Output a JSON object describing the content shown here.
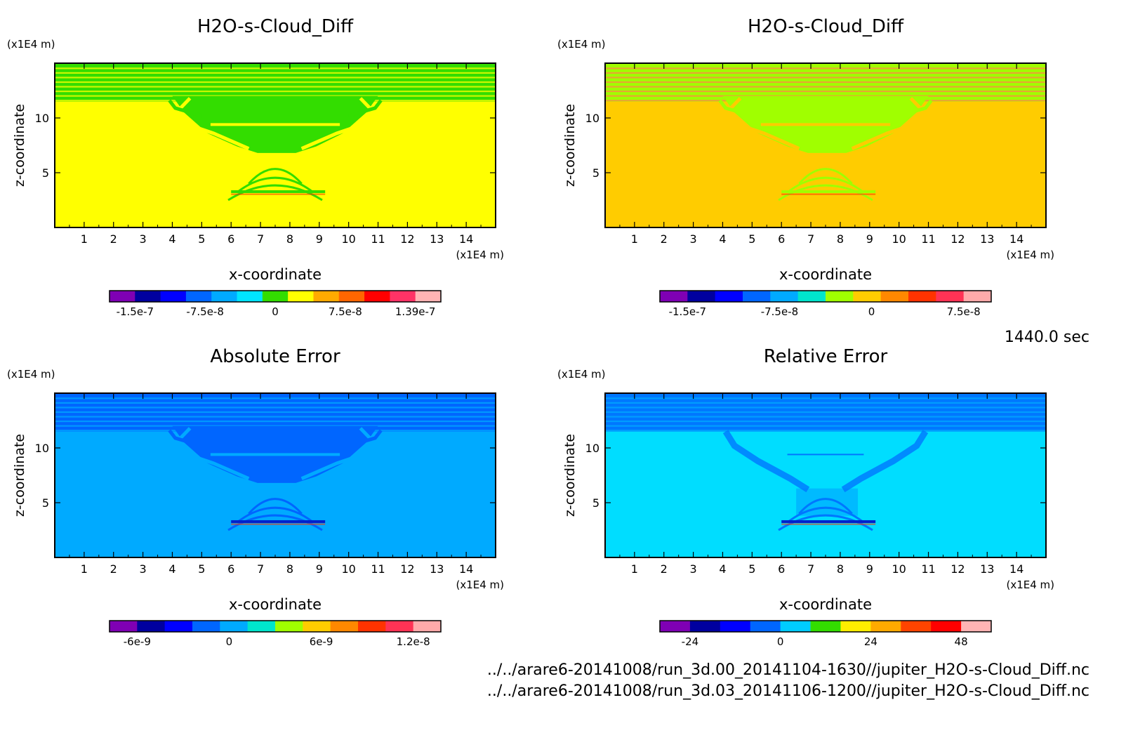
{
  "time_label": "1440.0 sec",
  "files": [
    "../../arare6-20141008/run_3d.00_20141104-1630//jupiter_H2O-s-Cloud_Diff.nc",
    "../../arare6-20141008/run_3d.03_20141106-1200//jupiter_H2O-s-Cloud_Diff.nc"
  ],
  "chart_data": [
    {
      "type": "heatmap",
      "title": "H2O-s-Cloud_Diff",
      "xlabel": "x-coordinate",
      "ylabel": "z-coordinate",
      "x_unit": "(x1E4 m)",
      "z_unit": "(x1E4 m)",
      "xlim": [
        0,
        15
      ],
      "zlim": [
        0,
        15
      ],
      "x_ticks": [
        "1",
        "2",
        "3",
        "4",
        "5",
        "6",
        "7",
        "8",
        "9",
        "10",
        "11",
        "12",
        "13",
        "14"
      ],
      "z_ticks": [
        "5",
        "10"
      ],
      "background_color": "#ffff00",
      "feature_color": "#33dd00",
      "colorbar_colors": [
        "#7f00b4",
        "#00009f",
        "#0000ff",
        "#0066ff",
        "#00aaff",
        "#00e5ff",
        "#33dd00",
        "#ffff00",
        "#ffaa00",
        "#ff6600",
        "#ff0000",
        "#ff3366",
        "#ffb4b4"
      ],
      "colorbar_labels": [
        "-1.5e-7",
        "-7.5e-8",
        "0",
        "7.5e-8",
        "1.39e-7"
      ]
    },
    {
      "type": "heatmap",
      "title": "H2O-s-Cloud_Diff",
      "xlabel": "x-coordinate",
      "ylabel": "z-coordinate",
      "x_unit": "(x1E4 m)",
      "z_unit": "(x1E4 m)",
      "xlim": [
        0,
        15
      ],
      "zlim": [
        0,
        15
      ],
      "x_ticks": [
        "1",
        "2",
        "3",
        "4",
        "5",
        "6",
        "7",
        "8",
        "9",
        "10",
        "11",
        "12",
        "13",
        "14"
      ],
      "z_ticks": [
        "5",
        "10"
      ],
      "background_color": "#ffcc00",
      "feature_color": "#a0ff00",
      "colorbar_colors": [
        "#7f00b4",
        "#00009f",
        "#0000ff",
        "#0066ff",
        "#00aaff",
        "#00e5cc",
        "#a0ff00",
        "#ffcc00",
        "#ff8800",
        "#ff3300",
        "#ff3355",
        "#ffaaaa"
      ],
      "colorbar_labels": [
        "-1.5e-7",
        "-7.5e-8",
        "0",
        "7.5e-8"
      ]
    },
    {
      "type": "heatmap",
      "title": "Absolute Error",
      "xlabel": "x-coordinate",
      "ylabel": "z-coordinate",
      "x_unit": "(x1E4 m)",
      "z_unit": "(x1E4 m)",
      "xlim": [
        0,
        15
      ],
      "zlim": [
        0,
        15
      ],
      "x_ticks": [
        "1",
        "2",
        "3",
        "4",
        "5",
        "6",
        "7",
        "8",
        "9",
        "10",
        "11",
        "12",
        "13",
        "14"
      ],
      "z_ticks": [
        "5",
        "10"
      ],
      "background_color": "#00aaff",
      "feature_color": "#0066ff",
      "colorbar_colors": [
        "#7f00b4",
        "#00009f",
        "#0000ff",
        "#0066ff",
        "#00aaff",
        "#00e5cc",
        "#a0ff00",
        "#ffcc00",
        "#ff8800",
        "#ff3300",
        "#ff3355",
        "#ffaaaa"
      ],
      "colorbar_labels": [
        "-6e-9",
        "0",
        "6e-9",
        "1.2e-8"
      ]
    },
    {
      "type": "heatmap",
      "title": "Relative Error",
      "xlabel": "x-coordinate",
      "ylabel": "z-coordinate",
      "x_unit": "(x1E4 m)",
      "z_unit": "(x1E4 m)",
      "xlim": [
        0,
        15
      ],
      "zlim": [
        0,
        15
      ],
      "x_ticks": [
        "1",
        "2",
        "3",
        "4",
        "5",
        "6",
        "7",
        "8",
        "9",
        "10",
        "11",
        "12",
        "13",
        "14"
      ],
      "z_ticks": [
        "5",
        "10"
      ],
      "background_color": "#00ddff",
      "feature_color": "#0077ff",
      "colorbar_colors": [
        "#7f00b4",
        "#00009f",
        "#0000ff",
        "#0066ff",
        "#00ccff",
        "#33dd00",
        "#ffee00",
        "#ffaa00",
        "#ff4400",
        "#ff0000",
        "#ffb4b4"
      ],
      "colorbar_labels": [
        "-24",
        "0",
        "24",
        "48"
      ]
    }
  ]
}
